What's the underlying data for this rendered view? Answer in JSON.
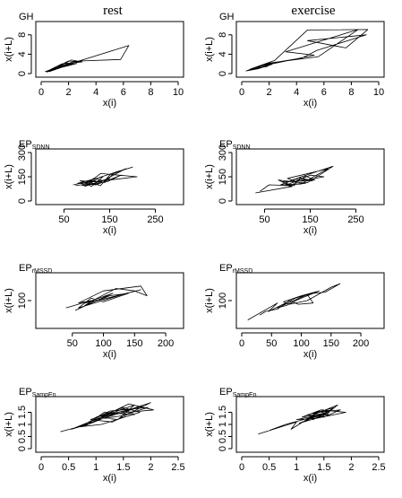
{
  "column_titles": [
    "rest",
    "exercise"
  ],
  "chart_data": [
    {
      "type": "line",
      "panel_label": "GH",
      "panel_label_sub": "",
      "column": "rest",
      "xlabel": "x(i)",
      "ylabel": "x(i+L)",
      "xlim": [
        0,
        10
      ],
      "ylim": [
        0,
        10
      ],
      "xticks": [
        0,
        2,
        4,
        6,
        8,
        10
      ],
      "yticks": [
        0,
        4,
        8
      ],
      "points": [
        [
          0.4,
          0.3
        ],
        [
          1.1,
          0.9
        ],
        [
          0.6,
          0.4
        ],
        [
          2.2,
          2.8
        ],
        [
          3.0,
          2.4
        ],
        [
          1.5,
          2.0
        ],
        [
          0.5,
          0.6
        ],
        [
          5.5,
          5.0
        ],
        [
          6.4,
          5.8
        ],
        [
          5.8,
          2.9
        ],
        [
          2.8,
          2.6
        ],
        [
          1.2,
          1.0
        ],
        [
          0.3,
          0.4
        ],
        [
          2.6,
          2.1
        ],
        [
          1.4,
          1.4
        ],
        [
          0.7,
          0.8
        ],
        [
          2.0,
          2.6
        ],
        [
          3.0,
          2.4
        ],
        [
          2.5,
          2.6
        ],
        [
          1.0,
          1.1
        ],
        [
          0.4,
          0.5
        ],
        [
          1.8,
          1.8
        ],
        [
          0.9,
          0.7
        ],
        [
          0.4,
          0.4
        ]
      ]
    },
    {
      "type": "line",
      "panel_label": "GH",
      "panel_label_sub": "",
      "column": "exercise",
      "xlabel": "x(i)",
      "ylabel": "x(i+L)",
      "xlim": [
        0,
        10
      ],
      "ylim": [
        0,
        10
      ],
      "xticks": [
        0,
        2,
        4,
        6,
        8,
        10
      ],
      "yticks": [
        0,
        4,
        8
      ],
      "points": [
        [
          0.3,
          0.5
        ],
        [
          1.3,
          1.6
        ],
        [
          0.6,
          0.9
        ],
        [
          2.3,
          2.2
        ],
        [
          1.8,
          1.4
        ],
        [
          0.9,
          1.2
        ],
        [
          2.4,
          2.7
        ],
        [
          4.8,
          9.0
        ],
        [
          9.2,
          9.1
        ],
        [
          7.6,
          5.3
        ],
        [
          4.8,
          6.8
        ],
        [
          9.1,
          8.0
        ],
        [
          5.5,
          4.8
        ],
        [
          4.4,
          3.2
        ],
        [
          2.0,
          2.1
        ],
        [
          1.0,
          1.3
        ],
        [
          5.3,
          3.8
        ],
        [
          3.2,
          4.5
        ],
        [
          8.5,
          9.1
        ],
        [
          5.6,
          3.5
        ],
        [
          1.8,
          2.1
        ],
        [
          0.7,
          0.8
        ],
        [
          2.2,
          1.9
        ],
        [
          1.2,
          1.0
        ],
        [
          0.4,
          0.6
        ]
      ]
    },
    {
      "type": "line",
      "panel_label": "EP",
      "panel_label_sub": "SDNN",
      "column": "rest",
      "xlabel": "x(i)",
      "ylabel": "x(i+L)",
      "xlim": [
        0,
        300
      ],
      "ylim": [
        0,
        300
      ],
      "xticks": [
        50,
        150,
        250
      ],
      "yticks": [
        0,
        150,
        300
      ],
      "points": [
        [
          70,
          100
        ],
        [
          120,
          130
        ],
        [
          95,
          90
        ],
        [
          150,
          140
        ],
        [
          110,
          105
        ],
        [
          85,
          125
        ],
        [
          140,
          115
        ],
        [
          160,
          175
        ],
        [
          200,
          210
        ],
        [
          170,
          185
        ],
        [
          100,
          120
        ],
        [
          130,
          95
        ],
        [
          150,
          160
        ],
        [
          185,
          200
        ],
        [
          125,
          110
        ],
        [
          90,
          95
        ],
        [
          115,
          140
        ],
        [
          145,
          120
        ],
        [
          175,
          160
        ],
        [
          120,
          100
        ],
        [
          80,
          110
        ],
        [
          135,
          150
        ],
        [
          110,
          90
        ],
        [
          95,
          115
        ],
        [
          150,
          130
        ],
        [
          210,
          150
        ],
        [
          130,
          170
        ],
        [
          100,
          105
        ],
        [
          75,
          95
        ]
      ]
    },
    {
      "type": "line",
      "panel_label": "EP",
      "panel_label_sub": "SDNN",
      "column": "exercise",
      "xlabel": "x(i)",
      "ylabel": "x(i+L)",
      "xlim": [
        0,
        300
      ],
      "ylim": [
        0,
        300
      ],
      "xticks": [
        50,
        150,
        250
      ],
      "yticks": [
        0,
        150,
        300
      ],
      "points": [
        [
          30,
          50
        ],
        [
          110,
          90
        ],
        [
          80,
          130
        ],
        [
          140,
          110
        ],
        [
          95,
          95
        ],
        [
          150,
          160
        ],
        [
          180,
          150
        ],
        [
          120,
          120
        ],
        [
          100,
          140
        ],
        [
          190,
          200
        ],
        [
          170,
          170
        ],
        [
          130,
          105
        ],
        [
          85,
          100
        ],
        [
          115,
          135
        ],
        [
          160,
          130
        ],
        [
          140,
          155
        ],
        [
          105,
          90
        ],
        [
          90,
          120
        ],
        [
          155,
          125
        ],
        [
          125,
          145
        ],
        [
          200,
          215
        ],
        [
          145,
          115
        ],
        [
          110,
          100
        ],
        [
          95,
          110
        ],
        [
          130,
          150
        ],
        [
          115,
          95
        ],
        [
          60,
          100
        ],
        [
          40,
          60
        ]
      ]
    },
    {
      "type": "line",
      "panel_label": "EP",
      "panel_label_sub": "rMSSD",
      "column": "rest",
      "xlabel": "x(i)",
      "ylabel": "x(i+L)",
      "xlim": [
        0,
        220
      ],
      "ylim": [
        0,
        200
      ],
      "xticks": [
        50,
        100,
        150,
        200
      ],
      "yticks": [
        100
      ],
      "points": [
        [
          40,
          70
        ],
        [
          80,
          100
        ],
        [
          60,
          90
        ],
        [
          100,
          140
        ],
        [
          160,
          160
        ],
        [
          170,
          120
        ],
        [
          150,
          140
        ],
        [
          120,
          150
        ],
        [
          90,
          110
        ],
        [
          70,
          80
        ],
        [
          110,
          120
        ],
        [
          140,
          130
        ],
        [
          100,
          95
        ],
        [
          80,
          110
        ],
        [
          60,
          70
        ],
        [
          130,
          125
        ],
        [
          160,
          145
        ],
        [
          90,
          100
        ],
        [
          70,
          90
        ],
        [
          115,
          130
        ],
        [
          85,
          95
        ],
        [
          55,
          60
        ],
        [
          75,
          85
        ]
      ]
    },
    {
      "type": "line",
      "panel_label": "EP",
      "panel_label_sub": "rMSSD",
      "column": "exercise",
      "xlabel": "x(i)",
      "ylabel": "x(i+L)",
      "xlim": [
        0,
        230
      ],
      "ylim": [
        0,
        200
      ],
      "xticks": [
        0,
        50,
        100,
        150,
        200
      ],
      "yticks": [
        100
      ],
      "points": [
        [
          10,
          20
        ],
        [
          60,
          90
        ],
        [
          45,
          55
        ],
        [
          90,
          110
        ],
        [
          120,
          130
        ],
        [
          140,
          135
        ],
        [
          165,
          170
        ],
        [
          150,
          155
        ],
        [
          110,
          100
        ],
        [
          80,
          85
        ],
        [
          70,
          95
        ],
        [
          100,
          120
        ],
        [
          130,
          140
        ],
        [
          95,
          105
        ],
        [
          75,
          80
        ],
        [
          60,
          70
        ],
        [
          110,
          125
        ],
        [
          120,
          90
        ],
        [
          95,
          85
        ],
        [
          80,
          100
        ],
        [
          60,
          65
        ],
        [
          40,
          55
        ],
        [
          30,
          40
        ]
      ]
    },
    {
      "type": "line",
      "panel_label": "EP",
      "panel_label_sub": "SampEn",
      "column": "rest",
      "xlabel": "x(i)",
      "ylabel": "x(i+L)",
      "xlim": [
        0,
        2.5
      ],
      "ylim": [
        0,
        2
      ],
      "xticks": [
        0,
        0.5,
        1,
        1.5,
        2,
        2.5
      ],
      "yticks": [
        0,
        0.5,
        1,
        1.5
      ],
      "points": [
        [
          0.35,
          0.7
        ],
        [
          0.85,
          1.0
        ],
        [
          0.55,
          0.8
        ],
        [
          1.2,
          1.4
        ],
        [
          1.7,
          1.8
        ],
        [
          1.4,
          1.2
        ],
        [
          1.0,
          1.3
        ],
        [
          1.6,
          1.6
        ],
        [
          2.0,
          1.9
        ],
        [
          1.3,
          1.1
        ],
        [
          0.9,
          1.2
        ],
        [
          1.5,
          1.7
        ],
        [
          1.8,
          1.5
        ],
        [
          1.1,
          1.0
        ],
        [
          0.7,
          0.9
        ],
        [
          1.25,
          1.55
        ],
        [
          1.95,
          1.7
        ],
        [
          1.45,
          1.35
        ],
        [
          1.0,
          1.2
        ],
        [
          1.6,
          1.85
        ],
        [
          2.05,
          1.6
        ],
        [
          1.35,
          1.45
        ],
        [
          0.8,
          0.95
        ],
        [
          1.15,
          1.5
        ],
        [
          1.7,
          1.4
        ],
        [
          1.5,
          1.65
        ],
        [
          0.95,
          1.15
        ],
        [
          1.4,
          1.5
        ],
        [
          1.85,
          1.75
        ],
        [
          1.2,
          1.3
        ],
        [
          0.6,
          0.85
        ]
      ]
    },
    {
      "type": "line",
      "panel_label": "EP",
      "panel_label_sub": "SampEn",
      "column": "exercise",
      "xlabel": "x(i)",
      "ylabel": "x(i+L)",
      "xlim": [
        0,
        2.5
      ],
      "ylim": [
        0,
        2
      ],
      "xticks": [
        0,
        0.5,
        1,
        1.5,
        2,
        2.5
      ],
      "yticks": [
        0,
        0.5,
        1,
        1.5
      ],
      "points": [
        [
          0.3,
          0.6
        ],
        [
          1.0,
          1.1
        ],
        [
          0.9,
          0.8
        ],
        [
          1.4,
          1.5
        ],
        [
          1.8,
          1.6
        ],
        [
          1.5,
          1.3
        ],
        [
          1.2,
          1.4
        ],
        [
          1.7,
          1.7
        ],
        [
          1.3,
          1.2
        ],
        [
          1.6,
          1.5
        ],
        [
          1.1,
          1.3
        ],
        [
          1.45,
          1.6
        ],
        [
          1.9,
          1.5
        ],
        [
          1.35,
          1.25
        ],
        [
          1.0,
          1.2
        ],
        [
          1.55,
          1.45
        ],
        [
          1.75,
          1.8
        ],
        [
          1.25,
          1.35
        ],
        [
          1.6,
          1.4
        ],
        [
          1.4,
          1.55
        ],
        [
          1.15,
          1.15
        ],
        [
          1.65,
          1.6
        ],
        [
          1.3,
          1.45
        ],
        [
          1.5,
          1.35
        ],
        [
          1.05,
          1.05
        ],
        [
          1.45,
          1.4
        ],
        [
          0.8,
          1.0
        ],
        [
          0.5,
          0.75
        ]
      ]
    }
  ]
}
